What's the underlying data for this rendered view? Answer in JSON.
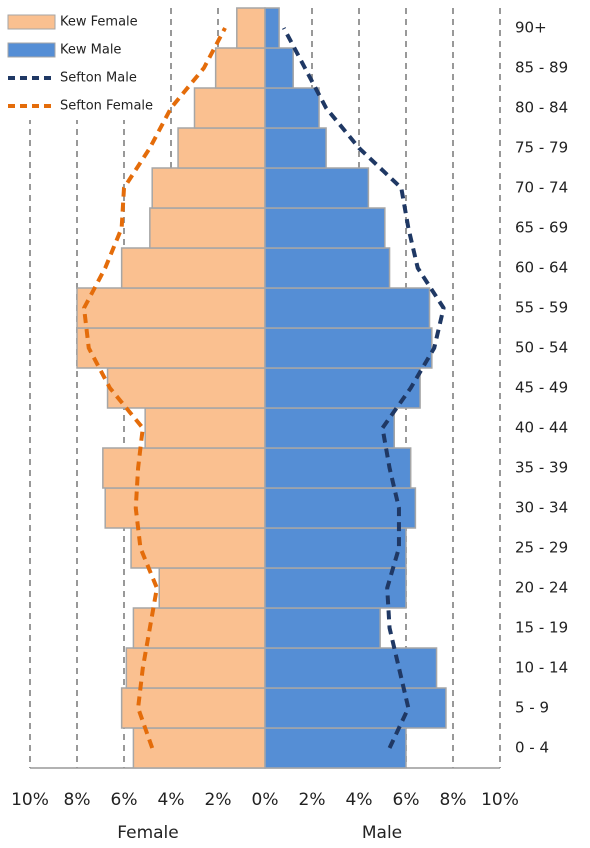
{
  "chart_data": {
    "type": "pyramid",
    "categories": [
      "0 - 4",
      "5 - 9",
      "10 - 14",
      "15 - 19",
      "20 - 24",
      "25 - 29",
      "30 - 34",
      "35 - 39",
      "40 - 44",
      "45 - 49",
      "50 - 54",
      "55 - 59",
      "60 - 64",
      "65 - 69",
      "70 - 74",
      "75 - 79",
      "80 - 84",
      "85 - 89",
      "90+"
    ],
    "series": [
      {
        "name": "Kew Female",
        "color": "#fac090",
        "style": "bar",
        "values": [
          -5.6,
          -6.1,
          -5.9,
          -5.6,
          -4.5,
          -5.7,
          -6.8,
          -6.9,
          -5.1,
          -6.7,
          -8.0,
          -8.0,
          -6.1,
          -4.9,
          -4.8,
          -3.7,
          -3.0,
          -2.1,
          -1.2
        ]
      },
      {
        "name": "Kew Male",
        "color": "#558ed5",
        "style": "bar",
        "values": [
          6.0,
          7.7,
          7.3,
          4.9,
          6.0,
          6.0,
          6.4,
          6.2,
          5.5,
          6.6,
          7.1,
          7.0,
          5.3,
          5.1,
          4.4,
          2.6,
          2.3,
          1.2,
          0.6
        ]
      },
      {
        "name": "Sefton Male",
        "color": "#1f3864",
        "style": "dashed-line",
        "values": [
          5.3,
          6.1,
          5.7,
          5.3,
          5.2,
          5.7,
          5.7,
          5.3,
          5.0,
          6.2,
          7.2,
          7.6,
          6.5,
          6.1,
          5.8,
          4.0,
          2.6,
          1.7,
          0.8
        ]
      },
      {
        "name": "Sefton Female",
        "color": "#e46c0a",
        "style": "dashed-line",
        "values": [
          -4.8,
          -5.4,
          -5.2,
          -4.9,
          -4.6,
          -5.3,
          -5.5,
          -5.4,
          -5.2,
          -6.6,
          -7.5,
          -7.7,
          -6.8,
          -6.1,
          -6.0,
          -4.9,
          -4.0,
          -2.6,
          -1.7
        ]
      }
    ],
    "xlim": [
      -10,
      10
    ],
    "xticks": [
      {
        "value": -10,
        "label": "10%"
      },
      {
        "value": -8,
        "label": "8%"
      },
      {
        "value": -6,
        "label": "6%"
      },
      {
        "value": -4,
        "label": "4%"
      },
      {
        "value": -2,
        "label": "2%"
      },
      {
        "value": 0,
        "label": "0%"
      },
      {
        "value": 2,
        "label": "2%"
      },
      {
        "value": 4,
        "label": "4%"
      },
      {
        "value": 6,
        "label": "6%"
      },
      {
        "value": 8,
        "label": "8%"
      },
      {
        "value": 10,
        "label": "10%"
      }
    ],
    "x_labels": [
      "Female",
      "Male"
    ],
    "grid": true,
    "legend": "top-left"
  }
}
